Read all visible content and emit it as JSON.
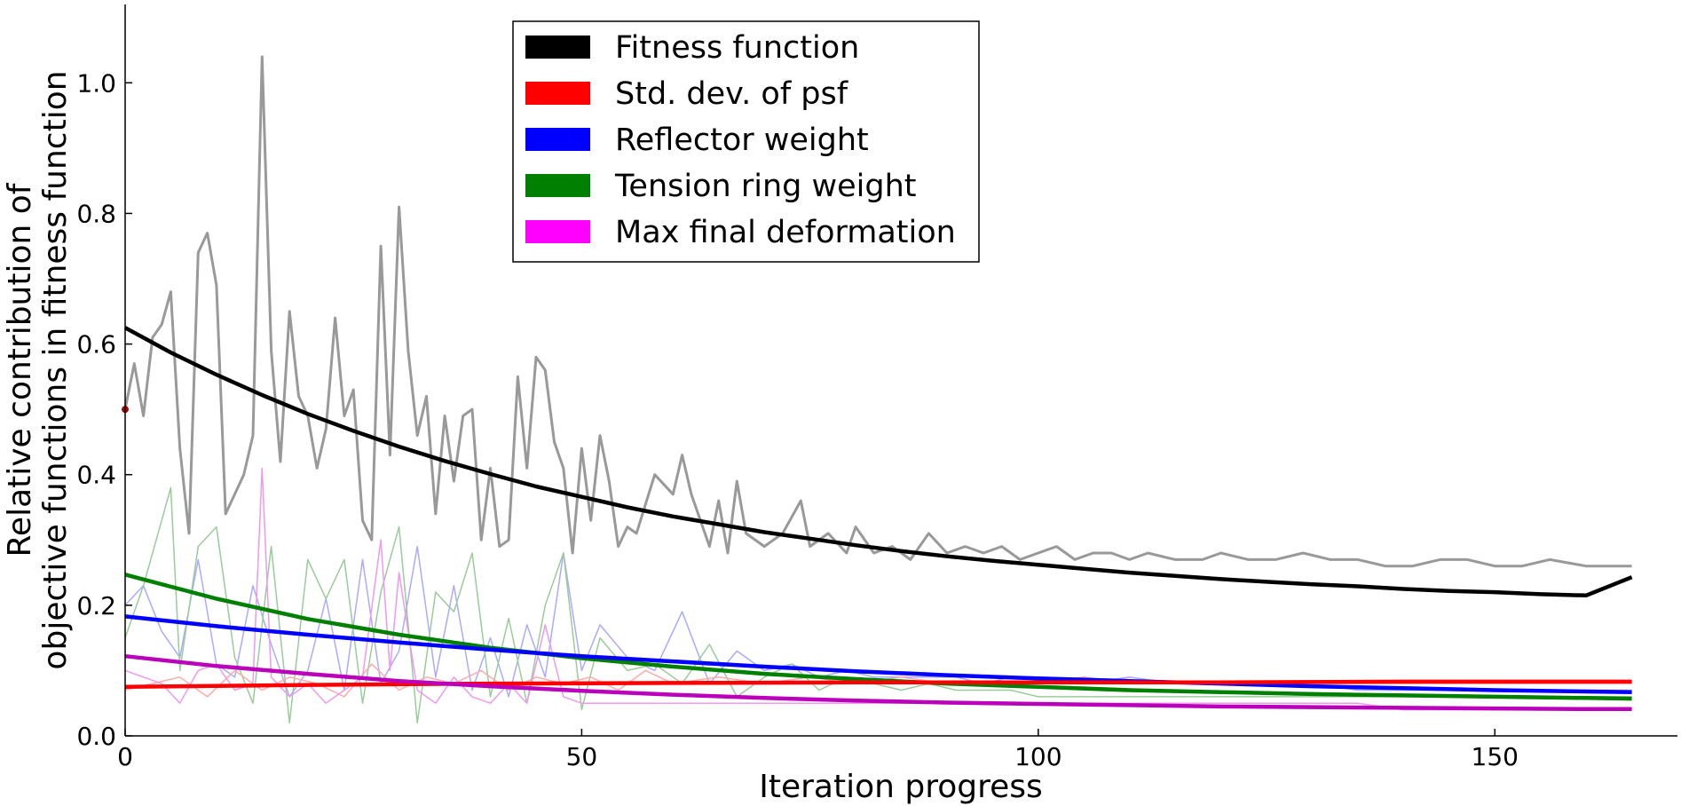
{
  "chart_data": {
    "type": "line",
    "title": "",
    "xlabel": "Iteration progress",
    "ylabel_line1": "Relative contribution of",
    "ylabel_line2": "objective functions in fitness function",
    "xlim": [
      0,
      170
    ],
    "ylim": [
      0,
      1.12
    ],
    "xticks": [
      0,
      50,
      100,
      150
    ],
    "yticks": [
      0.0,
      0.2,
      0.4,
      0.6,
      0.8,
      1.0
    ],
    "xtick_labels": [
      "0",
      "50",
      "100",
      "150"
    ],
    "ytick_labels": [
      "0.0",
      "0.2",
      "0.4",
      "0.6",
      "0.8",
      "1.0"
    ],
    "grid": false,
    "legend_position": "top-center",
    "legend": [
      {
        "label": "Fitness function",
        "color": "#000000"
      },
      {
        "label": "Std. dev. of psf",
        "color": "#ff0000"
      },
      {
        "label": "Reflector weight",
        "color": "#0000ff"
      },
      {
        "label": "Tension ring weight",
        "color": "#008000"
      },
      {
        "label": "Max final deformation",
        "color": "#ff00ff"
      }
    ],
    "series": [
      {
        "color": "#999999",
        "style": "raw",
        "x": [
          0,
          1,
          2,
          3,
          4,
          5,
          6,
          7,
          8,
          9,
          10,
          11,
          12,
          13,
          14,
          15,
          16,
          17,
          18,
          19,
          20,
          21,
          22,
          23,
          24,
          25,
          26,
          27,
          28,
          29,
          30,
          31,
          32,
          33,
          34,
          35,
          36,
          37,
          38,
          39,
          40,
          41,
          42,
          43,
          44,
          45,
          46,
          47,
          48,
          49,
          50,
          51,
          52,
          53,
          54,
          55,
          56,
          58,
          60,
          61,
          62,
          64,
          65,
          66,
          67,
          68,
          70,
          72,
          74,
          75,
          77,
          79,
          80,
          82,
          84,
          86,
          88,
          90,
          92,
          94,
          96,
          98,
          100,
          102,
          104,
          106,
          108,
          110,
          112,
          115,
          118,
          120,
          123,
          126,
          129,
          132,
          135,
          138,
          141,
          144,
          147,
          150,
          153,
          156,
          160,
          163,
          165
        ],
        "y": [
          0.5,
          0.57,
          0.49,
          0.61,
          0.63,
          0.68,
          0.44,
          0.31,
          0.74,
          0.77,
          0.69,
          0.34,
          0.37,
          0.4,
          0.46,
          1.04,
          0.59,
          0.42,
          0.65,
          0.52,
          0.49,
          0.41,
          0.47,
          0.64,
          0.49,
          0.53,
          0.33,
          0.3,
          0.75,
          0.43,
          0.81,
          0.59,
          0.46,
          0.52,
          0.34,
          0.49,
          0.39,
          0.49,
          0.5,
          0.3,
          0.41,
          0.29,
          0.3,
          0.55,
          0.41,
          0.58,
          0.56,
          0.45,
          0.41,
          0.28,
          0.44,
          0.33,
          0.46,
          0.39,
          0.29,
          0.32,
          0.31,
          0.4,
          0.37,
          0.43,
          0.37,
          0.29,
          0.36,
          0.28,
          0.39,
          0.31,
          0.29,
          0.31,
          0.36,
          0.29,
          0.31,
          0.28,
          0.32,
          0.28,
          0.29,
          0.27,
          0.31,
          0.28,
          0.29,
          0.28,
          0.29,
          0.27,
          0.28,
          0.29,
          0.27,
          0.28,
          0.28,
          0.27,
          0.28,
          0.27,
          0.27,
          0.28,
          0.27,
          0.27,
          0.28,
          0.27,
          0.27,
          0.26,
          0.26,
          0.27,
          0.27,
          0.26,
          0.26,
          0.27,
          0.26,
          0.26,
          0.26
        ]
      },
      {
        "color": "#000000",
        "style": "fit",
        "x": [
          0,
          5,
          10,
          15,
          20,
          25,
          30,
          35,
          40,
          45,
          50,
          55,
          60,
          65,
          70,
          75,
          80,
          85,
          90,
          95,
          100,
          105,
          110,
          115,
          120,
          125,
          130,
          135,
          140,
          145,
          150,
          155,
          160,
          165
        ],
        "y": [
          0.625,
          0.587,
          0.553,
          0.522,
          0.493,
          0.467,
          0.443,
          0.421,
          0.401,
          0.382,
          0.366,
          0.35,
          0.336,
          0.324,
          0.312,
          0.302,
          0.292,
          0.283,
          0.275,
          0.268,
          0.262,
          0.256,
          0.25,
          0.245,
          0.24,
          0.236,
          0.232,
          0.229,
          0.225,
          0.222,
          0.22,
          0.217,
          0.215,
          0.243
        ]
      },
      {
        "color": "#aaaaff",
        "style": "raw",
        "x": [
          0,
          2,
          4,
          6,
          8,
          10,
          12,
          14,
          16,
          18,
          20,
          22,
          24,
          26,
          28,
          30,
          32,
          34,
          36,
          38,
          40,
          42,
          44,
          46,
          48,
          50,
          52,
          55,
          58,
          61,
          64,
          67,
          70,
          73,
          76,
          79,
          82,
          85,
          88,
          91,
          94,
          97,
          100,
          105,
          110,
          115,
          120,
          125,
          130,
          135,
          140,
          145,
          150,
          155,
          160,
          165
        ],
        "y": [
          0.2,
          0.23,
          0.16,
          0.12,
          0.27,
          0.11,
          0.09,
          0.23,
          0.14,
          0.06,
          0.1,
          0.21,
          0.07,
          0.27,
          0.08,
          0.13,
          0.29,
          0.09,
          0.23,
          0.07,
          0.15,
          0.06,
          0.17,
          0.09,
          0.28,
          0.1,
          0.17,
          0.12,
          0.1,
          0.19,
          0.08,
          0.13,
          0.1,
          0.11,
          0.09,
          0.1,
          0.09,
          0.09,
          0.09,
          0.09,
          0.08,
          0.09,
          0.09,
          0.08,
          0.09,
          0.08,
          0.08,
          0.08,
          0.08,
          0.07,
          0.07,
          0.07,
          0.07,
          0.07,
          0.07,
          0.07
        ]
      },
      {
        "color": "#99cc99",
        "style": "raw",
        "x": [
          0,
          2,
          4,
          5,
          6,
          8,
          10,
          12,
          14,
          16,
          18,
          20,
          22,
          24,
          26,
          28,
          30,
          32,
          34,
          36,
          38,
          40,
          42,
          44,
          46,
          48,
          50,
          52,
          55,
          58,
          61,
          64,
          67,
          70,
          73,
          76,
          79,
          82,
          85,
          88,
          91,
          94,
          97,
          100,
          105,
          110,
          115,
          120,
          125,
          130,
          135,
          140,
          145,
          150,
          155,
          160,
          165
        ],
        "y": [
          0.15,
          0.23,
          0.33,
          0.38,
          0.1,
          0.29,
          0.32,
          0.12,
          0.05,
          0.29,
          0.02,
          0.27,
          0.21,
          0.27,
          0.05,
          0.22,
          0.32,
          0.02,
          0.22,
          0.19,
          0.28,
          0.06,
          0.18,
          0.05,
          0.2,
          0.28,
          0.04,
          0.15,
          0.1,
          0.11,
          0.08,
          0.14,
          0.06,
          0.09,
          0.11,
          0.07,
          0.09,
          0.08,
          0.07,
          0.08,
          0.07,
          0.07,
          0.07,
          0.06,
          0.06,
          0.06,
          0.06,
          0.06,
          0.06,
          0.06,
          0.06,
          0.06,
          0.06,
          0.06,
          0.06,
          0.06,
          0.06
        ]
      },
      {
        "color": "#ffaaaa",
        "style": "raw",
        "x": [
          0,
          3,
          6,
          9,
          12,
          15,
          18,
          21,
          24,
          27,
          30,
          33,
          36,
          39,
          42,
          45,
          48,
          51,
          54,
          57,
          60,
          65,
          70,
          75,
          80,
          85,
          90,
          95,
          100,
          105,
          110,
          115,
          120,
          125,
          130,
          135,
          140,
          145,
          150,
          155,
          160,
          165
        ],
        "y": [
          0.07,
          0.08,
          0.09,
          0.06,
          0.1,
          0.07,
          0.09,
          0.08,
          0.06,
          0.11,
          0.07,
          0.09,
          0.08,
          0.1,
          0.07,
          0.09,
          0.08,
          0.09,
          0.07,
          0.1,
          0.08,
          0.09,
          0.08,
          0.09,
          0.08,
          0.09,
          0.08,
          0.08,
          0.08,
          0.09,
          0.08,
          0.08,
          0.08,
          0.08,
          0.08,
          0.08,
          0.08,
          0.08,
          0.08,
          0.08,
          0.08,
          0.08
        ]
      },
      {
        "color": "#ee99ee",
        "style": "raw",
        "x": [
          0,
          2,
          4,
          6,
          8,
          10,
          12,
          14,
          15,
          16,
          18,
          20,
          22,
          24,
          26,
          28,
          29,
          30,
          32,
          34,
          36,
          38,
          40,
          42,
          44,
          46,
          48,
          50,
          55,
          60,
          65,
          70,
          75,
          80,
          85,
          90,
          95,
          100,
          105,
          110,
          115,
          120,
          125,
          130,
          135,
          140,
          145,
          150,
          155,
          160,
          165
        ],
        "y": [
          0.1,
          0.09,
          0.08,
          0.05,
          0.1,
          0.11,
          0.07,
          0.08,
          0.41,
          0.09,
          0.06,
          0.08,
          0.05,
          0.07,
          0.09,
          0.3,
          0.1,
          0.25,
          0.07,
          0.05,
          0.09,
          0.06,
          0.05,
          0.08,
          0.05,
          0.17,
          0.06,
          0.05,
          0.05,
          0.05,
          0.05,
          0.05,
          0.05,
          0.05,
          0.05,
          0.05,
          0.05,
          0.05,
          0.05,
          0.05,
          0.05,
          0.05,
          0.05,
          0.05,
          0.05,
          0.04,
          0.04,
          0.04,
          0.04,
          0.04,
          0.04
        ]
      },
      {
        "color": "#008000",
        "style": "fit",
        "x": [
          0,
          10,
          20,
          30,
          40,
          50,
          60,
          70,
          80,
          90,
          100,
          110,
          120,
          130,
          140,
          150,
          160,
          165
        ],
        "y": [
          0.247,
          0.21,
          0.179,
          0.155,
          0.135,
          0.119,
          0.106,
          0.095,
          0.087,
          0.08,
          0.075,
          0.07,
          0.067,
          0.064,
          0.062,
          0.06,
          0.058,
          0.057
        ]
      },
      {
        "color": "#0000ff",
        "style": "fit",
        "x": [
          0,
          10,
          20,
          30,
          40,
          50,
          60,
          70,
          80,
          90,
          100,
          110,
          120,
          130,
          140,
          150,
          160,
          165
        ],
        "y": [
          0.183,
          0.168,
          0.155,
          0.143,
          0.132,
          0.122,
          0.114,
          0.106,
          0.099,
          0.093,
          0.088,
          0.084,
          0.08,
          0.076,
          0.073,
          0.07,
          0.068,
          0.067
        ]
      },
      {
        "color": "#ff0000",
        "style": "fit",
        "x": [
          0,
          20,
          40,
          60,
          80,
          100,
          120,
          140,
          165
        ],
        "y": [
          0.075,
          0.078,
          0.08,
          0.081,
          0.082,
          0.082,
          0.082,
          0.083,
          0.083
        ]
      },
      {
        "color": "#bb00bb",
        "style": "fit",
        "x": [
          0,
          10,
          20,
          30,
          40,
          50,
          60,
          70,
          80,
          90,
          100,
          110,
          120,
          130,
          140,
          150,
          160,
          165
        ],
        "y": [
          0.122,
          0.107,
          0.095,
          0.084,
          0.076,
          0.069,
          0.063,
          0.058,
          0.054,
          0.051,
          0.049,
          0.047,
          0.045,
          0.044,
          0.043,
          0.042,
          0.041,
          0.041
        ]
      }
    ],
    "start_marker": {
      "x": 0,
      "y": 0.5,
      "color": "#aa0000"
    }
  }
}
